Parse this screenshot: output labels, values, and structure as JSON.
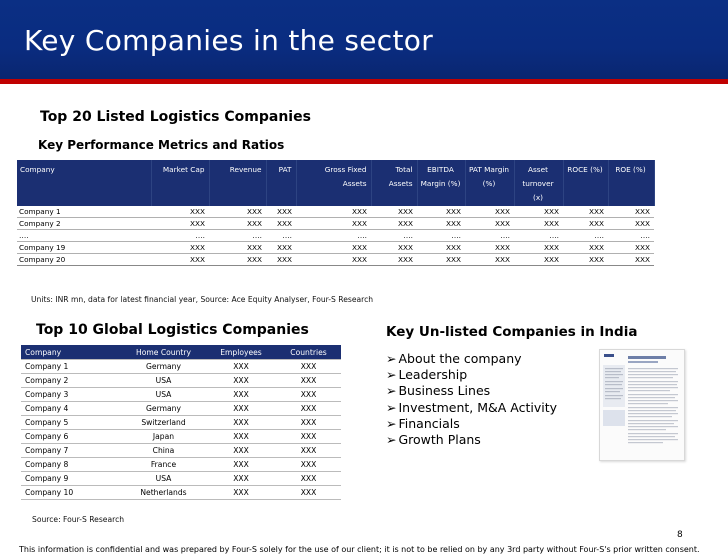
{
  "slide": {
    "title": "Key Companies in the sector",
    "page_number": "8",
    "footer": "This information is confidential and was prepared by Four-S solely for the use of our client; it is not to be relied on by any 3rd party without Four-S's prior written consent."
  },
  "top20": {
    "heading": "Top 20 Listed Logistics Companies",
    "subheading": "Key Performance Metrics and Ratios",
    "columns": [
      "Company",
      "Market Cap",
      "Revenue",
      "PAT",
      "Gross Fixed Assets",
      "Total Assets",
      "EBITDA Margin (%)",
      "PAT Margin (%)",
      "Asset turnover (x)",
      "ROCE (%)",
      "ROE (%)"
    ],
    "rows": [
      [
        "Company 1",
        "XXX",
        "XXX",
        "XXX",
        "XXX",
        "XXX",
        "XXX",
        "XXX",
        "XXX",
        "XXX",
        "XXX"
      ],
      [
        "Company 2",
        "XXX",
        "XXX",
        "XXX",
        "XXX",
        "XXX",
        "XXX",
        "XXX",
        "XXX",
        "XXX",
        "XXX"
      ],
      [
        "….",
        "….",
        "….",
        "….",
        "….",
        "….",
        "….",
        "….",
        "….",
        "….",
        "…."
      ],
      [
        "Company 19",
        "XXX",
        "XXX",
        "XXX",
        "XXX",
        "XXX",
        "XXX",
        "XXX",
        "XXX",
        "XXX",
        "XXX"
      ],
      [
        "Company 20",
        "XXX",
        "XXX",
        "XXX",
        "XXX",
        "XXX",
        "XXX",
        "XXX",
        "XXX",
        "XXX",
        "XXX"
      ]
    ],
    "note": "Units: INR mn, data for latest financial year, Source: Ace Equity Analyser, Four-S Research"
  },
  "global": {
    "heading": "Top 10 Global Logistics Companies",
    "columns": [
      "Company",
      "Home Country",
      "Employees",
      "Countries"
    ],
    "rows": [
      [
        "Company 1",
        "Germany",
        "XXX",
        "XXX"
      ],
      [
        "Company 2",
        "USA",
        "XXX",
        "XXX"
      ],
      [
        "Company 3",
        "USA",
        "XXX",
        "XXX"
      ],
      [
        "Company 4",
        "Germany",
        "XXX",
        "XXX"
      ],
      [
        "Company 5",
        "Switzerland",
        "XXX",
        "XXX"
      ],
      [
        "Company 6",
        "Japan",
        "XXX",
        "XXX"
      ],
      [
        "Company 7",
        "China",
        "XXX",
        "XXX"
      ],
      [
        "Company 8",
        "France",
        "XXX",
        "XXX"
      ],
      [
        "Company 9",
        "USA",
        "XXX",
        "XXX"
      ],
      [
        "Company 10",
        "Netherlands",
        "XXX",
        "XXX"
      ]
    ],
    "note": "Source: Four-S Research"
  },
  "unlisted": {
    "heading": "Key Un-listed Companies in India",
    "bullet_icon": "arrowhead-bullet-icon",
    "bullets": [
      "About the company",
      "Leadership",
      "Business Lines",
      "Investment, M&A Activity",
      "Financials",
      "Growth Plans"
    ]
  },
  "colors": {
    "title_bar": "#0a2c80",
    "accent_line": "#c00000",
    "table_header": "#1b2f72"
  }
}
